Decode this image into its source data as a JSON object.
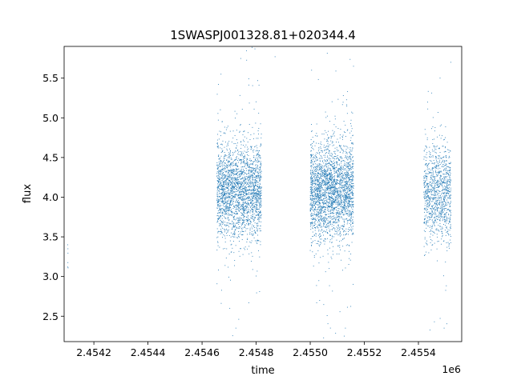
{
  "chart_data": {
    "type": "scatter",
    "title": "1SWASPJ001328.81+020344.4",
    "xlabel": "time",
    "ylabel": "flux",
    "x_offset_label": "1e6",
    "xlim": [
      2454090,
      2455560
    ],
    "ylim": [
      2.18,
      5.9
    ],
    "x_ticks": [
      2454200,
      2454400,
      2454600,
      2454800,
      2455000,
      2455200,
      2455400
    ],
    "x_tick_labels": [
      "2.4542",
      "2.4544",
      "2.4546",
      "2.4548",
      "2.4550",
      "2.4552",
      "2.4554"
    ],
    "y_ticks": [
      2.5,
      3.0,
      3.5,
      4.0,
      4.5,
      5.0,
      5.5
    ],
    "y_tick_labels": [
      "2.5",
      "3.0",
      "3.5",
      "4.0",
      "4.5",
      "5.0",
      "5.5"
    ],
    "grid": false,
    "marker_color": "#1f77b4",
    "series": [
      {
        "description_ranges": [
          {
            "x_start": 2454100,
            "x_end": 2454106,
            "y_center": 3.3,
            "y_spread": 0.12,
            "count": 4
          },
          {
            "x_start": 2454655,
            "x_end": 2454820,
            "y_center": 4.08,
            "y_spread": 0.3,
            "count": 2400
          },
          {
            "x_start": 2455000,
            "x_end": 2455160,
            "y_center": 4.08,
            "y_spread": 0.3,
            "count": 2600
          },
          {
            "x_start": 2455420,
            "x_end": 2455520,
            "y_center": 4.05,
            "y_spread": 0.3,
            "count": 1100
          }
        ]
      }
    ],
    "sample_points": [
      {
        "x": 2454103,
        "y": 3.4
      },
      {
        "x": 2454103,
        "y": 3.12
      },
      {
        "x": 2454870,
        "y": 5.77
      },
      {
        "x": 2455160,
        "y": 5.65
      },
      {
        "x": 2455520,
        "y": 5.7
      },
      {
        "x": 2454725,
        "y": 2.35
      },
      {
        "x": 2455130,
        "y": 2.35
      },
      {
        "x": 2455495,
        "y": 2.35
      },
      {
        "x": 2454670,
        "y": 5.55
      },
      {
        "x": 2455005,
        "y": 5.6
      }
    ]
  }
}
